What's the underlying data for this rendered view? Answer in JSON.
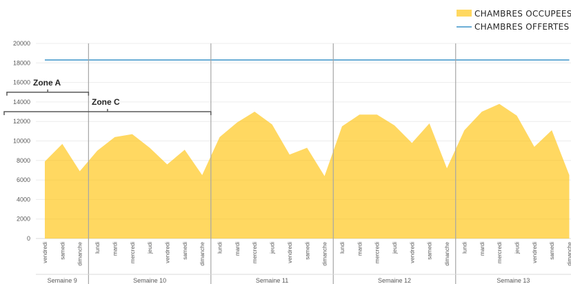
{
  "chart_data": {
    "type": "area",
    "ylim": [
      0,
      20000
    ],
    "yticks": [
      0,
      2000,
      4000,
      6000,
      8000,
      10000,
      12000,
      14000,
      16000,
      18000,
      20000
    ],
    "x": [
      "vendredi",
      "samedi",
      "dimanche",
      "lundi",
      "mardi",
      "mercredi",
      "jeudi",
      "vendredi",
      "samedi",
      "dimanche",
      "lundi",
      "mardi",
      "mercredi",
      "jeudi",
      "vendredi",
      "samedi",
      "dimanche",
      "lundi",
      "mardi",
      "mercredi",
      "jeudi",
      "vendredi",
      "samedi",
      "dimanche",
      "lundi",
      "mardi",
      "mercredi",
      "jeudi",
      "vendredi",
      "samedi",
      "dimanche"
    ],
    "weeks": [
      {
        "label": "Semaine 9",
        "count": 3
      },
      {
        "label": "Semaine 10",
        "count": 7
      },
      {
        "label": "Semaine 11",
        "count": 7
      },
      {
        "label": "Semaine 12",
        "count": 7
      },
      {
        "label": "Semaine 13",
        "count": 7
      }
    ],
    "series": [
      {
        "name": "CHAMBRES OCCUPEES",
        "type": "area",
        "color": "#FFC000",
        "values": [
          7900,
          9700,
          6900,
          9000,
          10400,
          10700,
          9300,
          7600,
          9100,
          6500,
          10400,
          11900,
          13000,
          11700,
          8600,
          9300,
          6400,
          11500,
          12700,
          12700,
          11600,
          9800,
          11800,
          7200,
          11100,
          13000,
          13800,
          12600,
          9400,
          11100,
          6500
        ]
      },
      {
        "name": "CHAMBRES OFFERTES",
        "type": "line",
        "color": "#6BAED6",
        "values": [
          18300,
          18300,
          18300,
          18300,
          18300,
          18300,
          18300,
          18300,
          18300,
          18300,
          18300,
          18300,
          18300,
          18300,
          18300,
          18300,
          18300,
          18300,
          18300,
          18300,
          18300,
          18300,
          18300,
          18300,
          18300,
          18300,
          18300,
          18300,
          18300,
          18300,
          18300
        ]
      }
    ],
    "annotations": [
      {
        "label": "Zone A",
        "y_level": 15000,
        "start_index": 0,
        "end_index": 2
      },
      {
        "label": "Zone C",
        "y_level": 13000,
        "start_index": 0,
        "end_index": 9
      }
    ],
    "legend_position": "top-right",
    "grid": true
  }
}
